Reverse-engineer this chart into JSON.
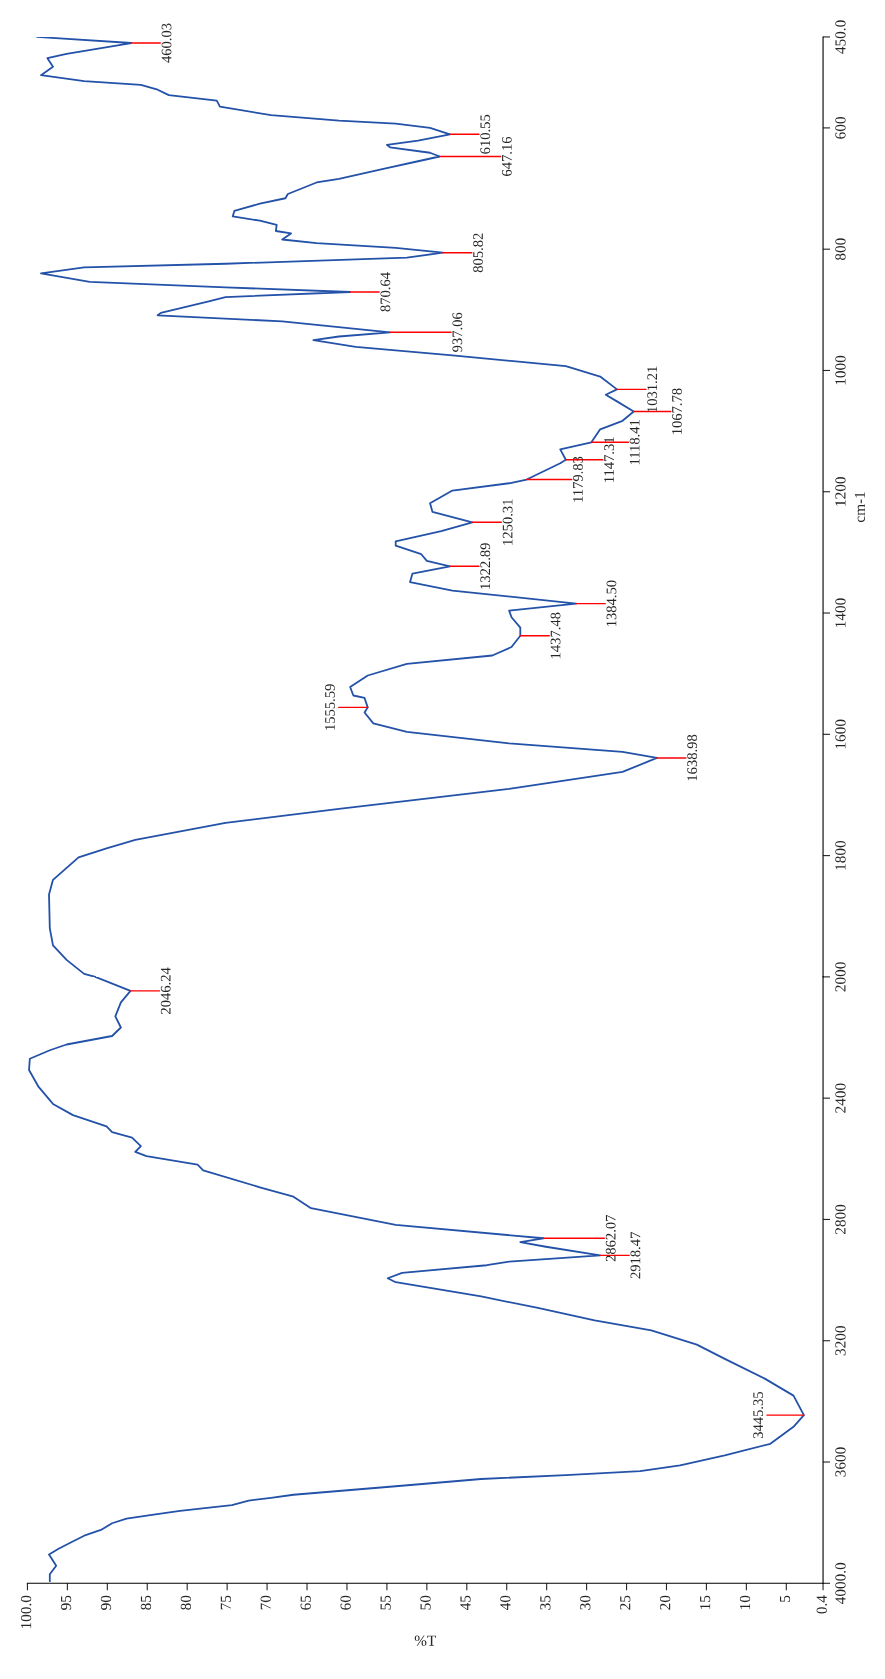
{
  "chart_data": [
    {
      "type": "line",
      "ylabel": "cm-1",
      "color": "#2352a8",
      "tick_labels": "y",
      "x": [
        98.8,
        87.0,
        95.1,
        97.5,
        96.8,
        98.3,
        92.9,
        85.8,
        83.7,
        82.3,
        76.3,
        75.9,
        69.5,
        61.0,
        53.9,
        49.6,
        47.1,
        51.1,
        55.0,
        54.6,
        49.6,
        48.4,
        51.1,
        55.3,
        61.0,
        63.8,
        67.4,
        67.7,
        70.9,
        74.1,
        74.3,
        70.9,
        68.8,
        68.9,
        67.0,
        68.1,
        63.8,
        53.9,
        48.0,
        52.5,
        75.2,
        92.9,
        98.3,
        92.2,
        75.2,
        59.6,
        75.2,
        77.3,
        83.3,
        83.7,
        68.1,
        54.6,
        61.0,
        64.2,
        58.9,
        46.8,
        32.6,
        28.3,
        26.2,
        27.6,
        26.2,
        24.1,
        25.5,
        28.3,
        29.4,
        33.3,
        32.6,
        33.3,
        37.5,
        39.7,
        46.8,
        49.6,
        49.3,
        44.3,
        48.2,
        53.9,
        53.9,
        50.7,
        50.0,
        47.1,
        51.8,
        52.1,
        46.8,
        31.3,
        39.7,
        39.4,
        38.3,
        38.3,
        39.4,
        41.8,
        52.5,
        57.4,
        59.6,
        59.2,
        57.8,
        57.4,
        57.8,
        56.7,
        52.5,
        39.7,
        25.5,
        21.2,
        25.5,
        39.7,
        61.0,
        75.2,
        86.5,
        90.1,
        93.6,
        96.8,
        97.3,
        97.2,
        96.8,
        95.1,
        92.9,
        91.5
      ],
      "values": [
        450,
        460.03,
        478,
        485,
        499,
        513,
        523,
        529,
        537,
        546,
        555,
        565,
        579,
        588,
        593,
        600,
        610.55,
        621,
        628,
        632,
        641,
        647.16,
        655,
        667,
        684,
        690,
        709,
        716,
        725,
        737,
        746,
        753,
        760,
        770,
        774,
        784,
        790,
        798,
        805.82,
        814,
        824,
        830,
        840,
        854,
        863,
        870.64,
        879,
        886,
        905,
        909,
        919,
        937.06,
        944,
        950,
        961,
        975,
        993,
        1010,
        1031.21,
        1040,
        1051,
        1067.78,
        1083,
        1097,
        1118.41,
        1130,
        1147.31,
        1153,
        1179.83,
        1186,
        1198,
        1219,
        1233,
        1250.31,
        1265,
        1282,
        1289,
        1303,
        1314,
        1322.89,
        1335,
        1349,
        1363,
        1384.5,
        1396,
        1407,
        1424,
        1437.48,
        1456,
        1470,
        1484,
        1503,
        1522,
        1536,
        1540,
        1555.59,
        1564,
        1582,
        1596,
        1615,
        1629,
        1638.98,
        1662,
        1690,
        1723,
        1746,
        1774,
        1788,
        1803,
        1840,
        1864,
        1920,
        1948,
        1972,
        1995,
        2000
      ],
      "xlim": [
        100,
        0.4
      ],
      "ylim": [
        2000,
        450
      ],
      "yticks": [
        2000,
        1800,
        1600,
        1400,
        1200,
        1000,
        800,
        600,
        {
          "value": 450,
          "label": "450.0"
        }
      ],
      "annotations": [
        {
          "text": "460.03",
          "x": 87.0,
          "y": 460.03
        },
        {
          "text": "610.55",
          "x": 47.1,
          "y": 610.55
        },
        {
          "text": "647.16",
          "x": 48.4,
          "y": 647.16
        },
        {
          "text": "805.82",
          "x": 48.0,
          "y": 805.82
        },
        {
          "text": "870.64",
          "x": 59.6,
          "y": 870.64
        },
        {
          "text": "937.06",
          "x": 54.6,
          "y": 937.06
        },
        {
          "text": "1031.21",
          "x": 26.2,
          "y": 1031.21
        },
        {
          "text": "1067.78",
          "x": 24.1,
          "y": 1067.78
        },
        {
          "text": "1118.41",
          "x": 29.4,
          "y": 1118.41
        },
        {
          "text": "1147.31",
          "x": 32.6,
          "y": 1147.31
        },
        {
          "text": "1179.83",
          "x": 37.5,
          "y": 1179.83
        },
        {
          "text": "1250.31",
          "x": 44.3,
          "y": 1250.31
        },
        {
          "text": "1322.89",
          "x": 47.1,
          "y": 1322.89
        },
        {
          "text": "1384.50",
          "x": 31.3,
          "y": 1384.5
        },
        {
          "text": "1437.48",
          "x": 38.3,
          "y": 1437.48
        },
        {
          "text": "1555.59",
          "x": 57.4,
          "y": 1555.59
        },
        {
          "text": "1638.98",
          "x": 21.2,
          "y": 1638.98
        }
      ]
    },
    {
      "type": "line",
      "xlabel": "%T",
      "color": "#2352a8",
      "x": [
        91.5,
        87.1,
        88.3,
        89.0,
        88.3,
        89.4,
        95.1,
        97.2,
        99.7,
        99.8,
        98.6,
        96.8,
        94.3,
        90.1,
        89.4,
        86.9,
        85.8,
        86.5,
        85.1,
        78.7,
        78.0,
        70.9,
        66.7,
        64.5,
        53.9,
        35.4,
        38.3,
        35.1,
        28.3,
        39.7,
        42.5,
        53.1,
        54.9,
        53.9,
        43.2,
        36.1,
        29.0,
        21.9,
        16.2,
        12.7,
        7.7,
        4.1,
        2.8,
        4.1,
        7.0,
        12.7,
        18.3,
        23.3,
        32.6,
        43.2,
        53.9,
        66.7,
        69.5,
        72.3,
        74.4,
        80.9,
        84.4,
        87.6,
        89.4,
        90.8,
        92.9,
        94.7,
        96.1,
        97.3,
        96.4,
        97.2,
        97.2
      ],
      "values": [
        2000,
        2046.24,
        2084,
        2130,
        2167,
        2195,
        2223,
        2242,
        2270,
        2307,
        2363,
        2419,
        2456,
        2493,
        2512,
        2530,
        2558,
        2577,
        2591,
        2619,
        2638,
        2694,
        2725,
        2763,
        2818,
        2862.07,
        2875,
        2890,
        2918.47,
        2939,
        2951,
        2976,
        2994,
        3007,
        3054,
        3092,
        3133,
        3166,
        3213,
        3260,
        3325,
        3381,
        3445.35,
        3484,
        3540,
        3578,
        3611,
        3630,
        3643,
        3656,
        3680,
        3708,
        3718,
        3727,
        3742,
        3761,
        3774,
        3787,
        3802,
        3824,
        3843,
        3867,
        3886,
        3905,
        3942,
        3970,
        3993
      ],
      "xlim": [
        100,
        0.4
      ],
      "xticks": [
        {
          "value": 100,
          "label": "100.0"
        },
        95,
        90,
        85,
        80,
        75,
        70,
        65,
        60,
        55,
        50,
        45,
        40,
        35,
        30,
        25,
        20,
        15,
        10,
        5,
        0.4
      ],
      "ylim": [
        4000,
        2000
      ],
      "yticks": [
        {
          "value": 4000,
          "label": "4000.0"
        },
        3600,
        3200,
        2800,
        2400
      ],
      "annotations": [
        {
          "text": "2046.24",
          "x": 87.1,
          "y": 2046.24
        },
        {
          "text": "2862.07",
          "x": 35.4,
          "y": 2862.07
        },
        {
          "text": "2918.47",
          "x": 28.3,
          "y": 2918.47
        },
        {
          "text": "3445.35",
          "x": 2.8,
          "y": 3445.35
        }
      ]
    }
  ]
}
